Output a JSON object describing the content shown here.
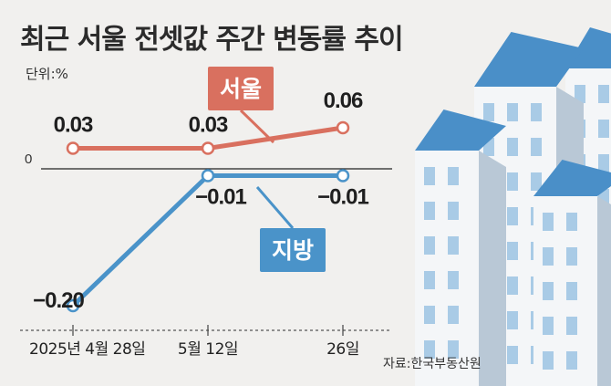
{
  "title": "최근 서울 전셋값 주간 변동률 추이",
  "unit_label": "단위:%",
  "source": "자료:한국부동산원",
  "colors": {
    "seoul": "#d9705f",
    "regional": "#4a93c9",
    "background": "#f1f0ee",
    "building_light": "#f4f6f8",
    "building_shadow": "#b9c8d6",
    "roof": "#4a8fc8",
    "window": "#a9cbe6"
  },
  "chart_data": {
    "type": "line",
    "categories": [
      "2025년 4월 28일",
      "5월 12일",
      "26일"
    ],
    "zero_label": "0",
    "ylim": [
      -0.24,
      0.08
    ],
    "series": [
      {
        "name": "서울",
        "values": [
          0.03,
          0.03,
          0.06
        ],
        "labels": [
          "0.03",
          "0.03",
          "0.06"
        ]
      },
      {
        "name": "지방",
        "values": [
          -0.2,
          -0.01,
          -0.01
        ],
        "labels": [
          "−0.20",
          "−0.01",
          "−0.01"
        ]
      }
    ]
  }
}
